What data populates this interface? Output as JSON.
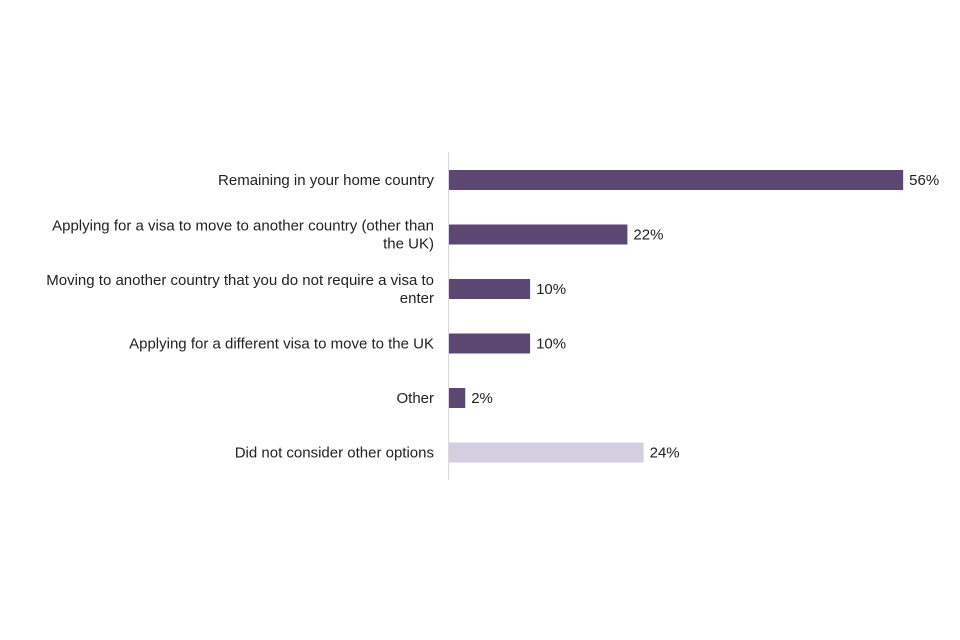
{
  "chart_data": {
    "type": "bar",
    "orientation": "horizontal",
    "title": "",
    "xlabel": "",
    "ylabel": "",
    "xlim": [
      0,
      60
    ],
    "grid": false,
    "legend": "none",
    "categories": [
      [
        "Remaining in your home country"
      ],
      [
        "Applying for a visa to move to another country (other than",
        "the UK)"
      ],
      [
        "Moving to another country that you do not require a visa to",
        "enter"
      ],
      [
        "Applying for a different visa to move to the UK"
      ],
      [
        "Other"
      ],
      [
        "Did not consider other options"
      ]
    ],
    "values": [
      56,
      22,
      10,
      10,
      2,
      24
    ],
    "value_labels": [
      "56%",
      "22%",
      "10%",
      "10%",
      "2%",
      "24%"
    ],
    "bar_colors": [
      "#5c4772",
      "#5c4772",
      "#5c4772",
      "#5c4772",
      "#5c4772",
      "#d5cde0"
    ]
  }
}
